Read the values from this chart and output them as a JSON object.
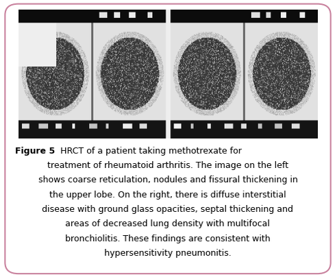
{
  "figure_label": "Figure 5",
  "caption_text": "HRCT of a patient taking methotrexate for treatment of rheumatoid arthritis. The image on the left shows coarse reticulation, nodules and fissural thickening in the upper lobe. On the right, there is diffuse interstitial disease with ground glass opacities, septal thickening and areas of decreased lung density with multifocal bronchiolitis. These findings are consistent with hypersensitivity pneumonitis.",
  "caption_lines": [
    "HRCT of a patient taking methotrexate for",
    "treatment of rheumatoid arthritis. The image on the left",
    "shows coarse reticulation, nodules and fissural thickening in",
    "the upper lobe. On the right, there is diffuse interstitial",
    "disease with ground glass opacities, septal thickening and",
    "areas of decreased lung density with multifocal",
    "bronchiolitis. These findings are consistent with",
    "hypersensitivity pneumonitis."
  ],
  "border_color": "#c9829e",
  "background_color": "#ffffff",
  "text_color": "#000000",
  "label_fontsize": 9.0,
  "caption_fontsize": 9.0,
  "fig_width": 4.89,
  "fig_height": 4.04,
  "dpi": 100
}
